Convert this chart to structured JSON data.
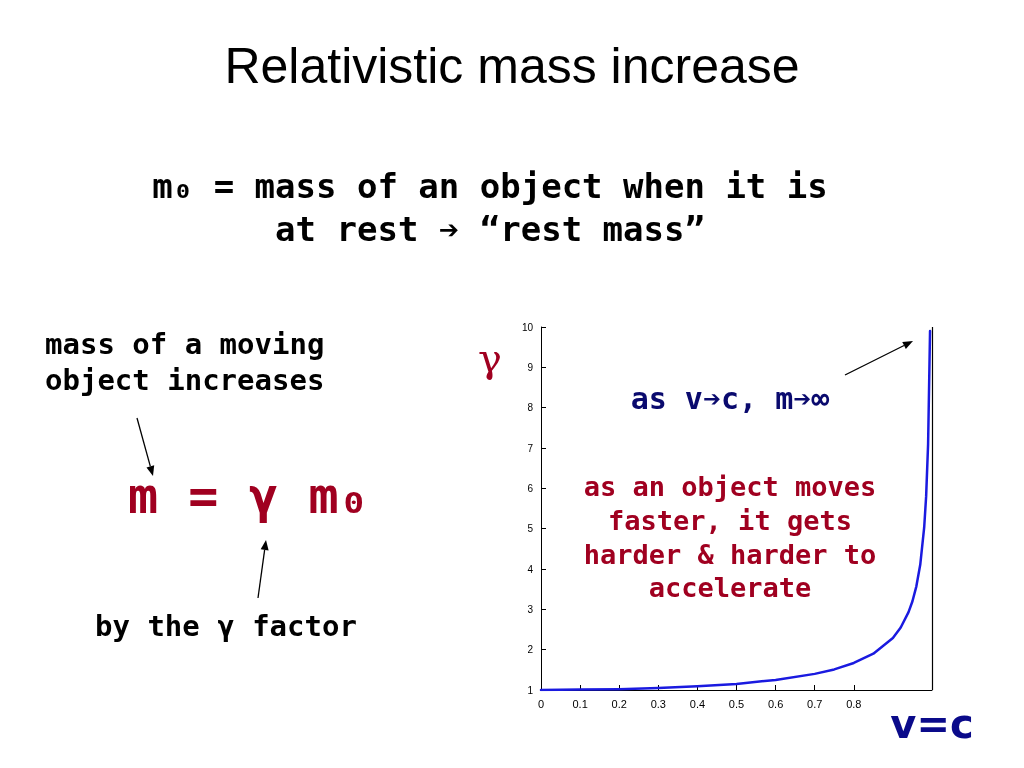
{
  "chart_data": {
    "type": "line",
    "title": "Relativistic mass increase",
    "ylabel": "γ",
    "x": [
      0,
      0.1,
      0.2,
      0.3,
      0.4,
      0.5,
      0.6,
      0.7,
      0.75,
      0.8,
      0.85,
      0.9,
      0.92,
      0.94,
      0.95,
      0.96,
      0.97,
      0.98,
      0.985,
      0.99,
      0.995
    ],
    "series": [
      {
        "color": "#1a1ae0",
        "values": [
          1,
          1.01,
          1.02,
          1.05,
          1.09,
          1.15,
          1.25,
          1.4,
          1.51,
          1.67,
          1.9,
          2.29,
          2.55,
          2.93,
          3.2,
          3.57,
          4.11,
          5.03,
          5.8,
          7.09,
          9.9
        ]
      }
    ],
    "xlim": [
      0,
      1
    ],
    "xticks": [
      0,
      0.1,
      0.2,
      0.3,
      0.4,
      0.5,
      0.6,
      0.7,
      0.8
    ],
    "ylim": [
      1,
      10
    ],
    "yticks": [
      1,
      2,
      3,
      4,
      5,
      6,
      7,
      8,
      9,
      10
    ],
    "ref_lines": [
      {
        "axis": "x",
        "value": 1,
        "label": "v=c",
        "color": "#000000"
      }
    ],
    "grid": false,
    "marker": "none",
    "annotations": [
      "m₀ = mass of an object when it is at rest ➔ “rest mass”",
      "mass of a moving object increases",
      "m = γ m₀",
      "by the γ factor",
      "as v➔c, m➔∞",
      "as an object moves faster, it gets harder & harder to accelerate"
    ]
  }
}
